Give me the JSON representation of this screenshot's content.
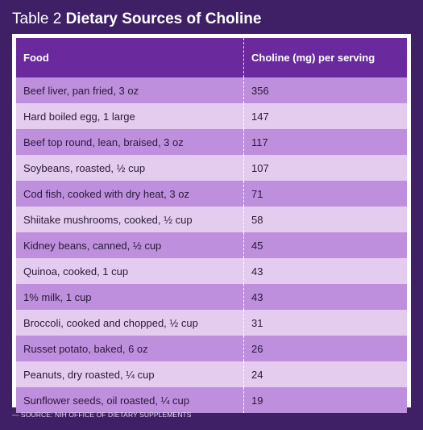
{
  "title": {
    "label": "Table 2",
    "name": "Dietary Sources of Choline"
  },
  "table": {
    "headers": [
      "Food",
      "Choline (mg) per serving"
    ],
    "rows": [
      {
        "food": "Beef liver, pan fried, 3 oz",
        "choline": "356"
      },
      {
        "food": "Hard boiled egg, 1 large",
        "choline": "147"
      },
      {
        "food": "Beef top round, lean, braised, 3 oz",
        "choline": "117"
      },
      {
        "food": "Soybeans, roasted, ½ cup",
        "choline": "107"
      },
      {
        "food": "Cod fish, cooked with dry heat, 3 oz",
        "choline": "71"
      },
      {
        "food": "Shiitake mushrooms, cooked, ½ cup",
        "choline": "58"
      },
      {
        "food": "Kidney beans, canned, ½ cup",
        "choline": "45"
      },
      {
        "food": "Quinoa, cooked, 1 cup",
        "choline": "43"
      },
      {
        "food": "1% milk, 1 cup",
        "choline": "43"
      },
      {
        "food": "Broccoli, cooked and chopped, ½ cup",
        "choline": "31"
      },
      {
        "food": "Russet potato, baked, 6 oz",
        "choline": "26"
      },
      {
        "food": "Peanuts, dry roasted, ¼ cup",
        "choline": "24"
      },
      {
        "food": "Sunflower seeds, oil roasted, ¼ cup",
        "choline": "19"
      }
    ]
  },
  "source": "— SOURCE: NIH OFFICE OF DIETARY SUPPLEMENTS",
  "colors": {
    "background": "#3f1f66",
    "header": "#6a2a9e",
    "row_dark": "#be8fdc",
    "row_light": "#e4ccef"
  }
}
